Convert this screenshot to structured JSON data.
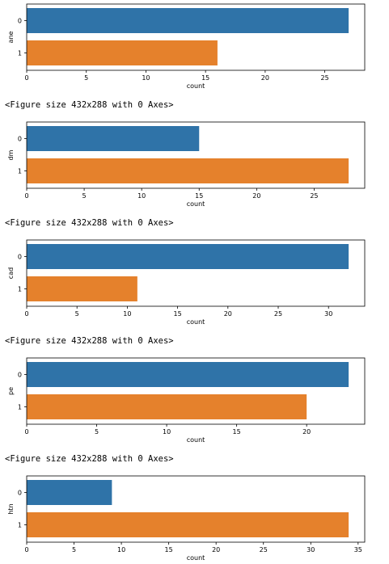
{
  "figure_notes": [
    "<Figure size 432x288 with 0 Axes>",
    "<Figure size 432x288 with 0 Axes>",
    "<Figure size 432x288 with 0 Axes>",
    "<Figure size 432x288 with 0 Axes>"
  ],
  "colors": {
    "bar0": "#2f73a8",
    "bar1": "#e5812c"
  },
  "chart_data": [
    {
      "type": "bar",
      "orientation": "horizontal",
      "categories": [
        "0",
        "1"
      ],
      "values": [
        27,
        16
      ],
      "xlabel": "count",
      "ylabel": "ane",
      "xlim": [
        0,
        28.35
      ],
      "xticks": [
        0,
        5,
        10,
        15,
        20,
        25
      ],
      "grid": false
    },
    {
      "type": "bar",
      "orientation": "horizontal",
      "categories": [
        "0",
        "1"
      ],
      "values": [
        15,
        28
      ],
      "xlabel": "count",
      "ylabel": "dm",
      "xlim": [
        0,
        29.4
      ],
      "xticks": [
        0,
        5,
        10,
        15,
        20,
        25
      ],
      "grid": false
    },
    {
      "type": "bar",
      "orientation": "horizontal",
      "categories": [
        "0",
        "1"
      ],
      "values": [
        32,
        11
      ],
      "xlabel": "count",
      "ylabel": "cad",
      "xlim": [
        0,
        33.6
      ],
      "xticks": [
        0,
        5,
        10,
        15,
        20,
        25,
        30
      ],
      "grid": false
    },
    {
      "type": "bar",
      "orientation": "horizontal",
      "categories": [
        "0",
        "1"
      ],
      "values": [
        23,
        20
      ],
      "xlabel": "count",
      "ylabel": "pe",
      "xlim": [
        0,
        24.15
      ],
      "xticks": [
        0,
        5,
        10,
        15,
        20
      ],
      "grid": false
    },
    {
      "type": "bar",
      "orientation": "horizontal",
      "categories": [
        "0",
        "1"
      ],
      "values": [
        9,
        34
      ],
      "xlabel": "count",
      "ylabel": "htn",
      "xlim": [
        0,
        35.7
      ],
      "xticks": [
        0,
        5,
        10,
        15,
        20,
        25,
        30,
        35
      ],
      "grid": false
    }
  ]
}
